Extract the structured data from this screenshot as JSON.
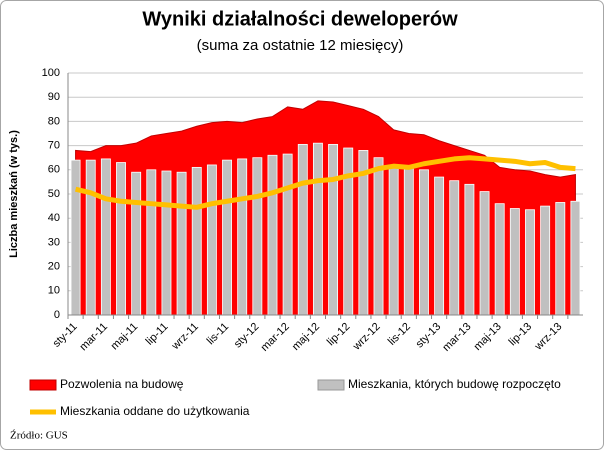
{
  "chart_data": {
    "type": "combo",
    "title": "Wyniki działalności deweloperów",
    "subtitle": "(suma za ostatnie 12 miesięcy)",
    "y_label": "Liczba mieszkań (w tys.)",
    "source": "Źródło: GUS",
    "categories": [
      "sty-11",
      null,
      "mar-11",
      null,
      "maj-11",
      null,
      "lip-11",
      null,
      "wrz-11",
      null,
      "lis-11",
      null,
      "sty-12",
      null,
      "mar-12",
      null,
      "maj-12",
      null,
      "lip-12",
      null,
      "wrz-12",
      null,
      "lis-12",
      null,
      "sty-13",
      null,
      "mar-13",
      null,
      "maj-13",
      null,
      "lip-13",
      null,
      "wrz-13",
      null
    ],
    "series": [
      {
        "name": "Pozwolenia na budowę",
        "type": "area",
        "color": "#ff0000",
        "values": [
          68,
          67.5,
          70,
          70,
          71,
          74,
          75,
          76,
          78,
          79.5,
          80,
          79.5,
          81,
          82,
          86,
          85,
          88.5,
          88,
          86.5,
          85,
          82,
          76.5,
          75,
          74.5,
          72,
          70,
          68,
          66,
          61,
          60,
          59.5,
          58,
          57,
          58
        ]
      },
      {
        "name": "Mieszkania, których budowę rozpoczęto",
        "type": "bar",
        "color": "#c0c0c0",
        "values": [
          64,
          64,
          64.5,
          63,
          59,
          60,
          59.5,
          59,
          61,
          62,
          64,
          64.5,
          65,
          66,
          66.5,
          70.5,
          71,
          70.5,
          69,
          68,
          65,
          62,
          61,
          60,
          57,
          55.5,
          54,
          51,
          46,
          44,
          43.5,
          45,
          46.5,
          47
        ]
      },
      {
        "name": "Mieszkania oddane do użytkowania",
        "type": "line",
        "color": "#ffc000",
        "values": [
          52,
          50.5,
          48,
          47,
          46.5,
          46,
          45.5,
          45,
          44.5,
          46,
          47,
          48,
          49,
          50.5,
          52.5,
          54.5,
          55.5,
          56,
          57.5,
          58.5,
          60.5,
          61.5,
          61,
          62.5,
          63.5,
          64.5,
          65,
          64.5,
          64,
          63.5,
          62.5,
          63,
          61,
          60.5
        ]
      }
    ],
    "ylim": [
      0,
      100
    ],
    "yticks": [
      0,
      10,
      20,
      30,
      40,
      50,
      60,
      70,
      80,
      90,
      100
    ],
    "grid": true
  }
}
